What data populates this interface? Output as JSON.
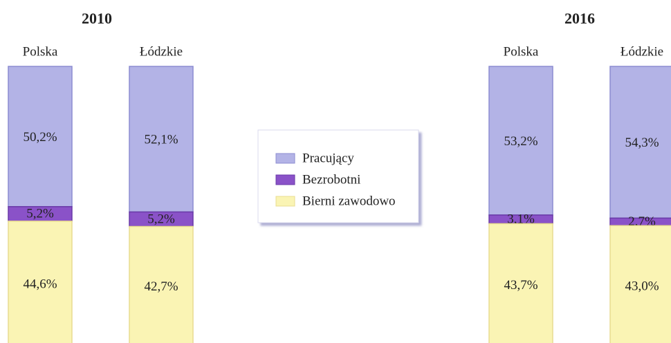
{
  "chart_data": [
    {
      "type": "bar",
      "stacked": true,
      "title": "2010",
      "categories": [
        "Polska",
        "Łódzkie"
      ],
      "series": [
        {
          "name": "Pracujący",
          "color": "#b3b3e6",
          "values": [
            50.2,
            52.1
          ],
          "value_labels": [
            "50,2%",
            "52,1%"
          ]
        },
        {
          "name": "Bezrobotni",
          "color": "#8a52c8",
          "values": [
            5.2,
            5.2
          ],
          "value_labels": [
            "5,2%",
            "5,2%"
          ]
        },
        {
          "name": "Bierni zawodowo",
          "color": "#faf4b4",
          "values": [
            44.6,
            42.7
          ],
          "value_labels": [
            "44,6%",
            "42,7%"
          ]
        }
      ]
    },
    {
      "type": "bar",
      "stacked": true,
      "title": "2016",
      "categories": [
        "Polska",
        "Łódzkie"
      ],
      "series": [
        {
          "color": "#b3b3e6",
          "values": [
            53.2,
            54.3
          ],
          "value_labels": [
            "53,2%",
            "54,3%"
          ]
        },
        {
          "color": "#8a52c8",
          "values": [
            3.1,
            2.7
          ],
          "value_labels": [
            "3,1%",
            "2,7%"
          ]
        },
        {
          "color": "#faf4b4",
          "values": [
            43.7,
            43.0
          ],
          "value_labels": [
            "43,7%",
            "43,0%"
          ]
        }
      ]
    }
  ]
}
